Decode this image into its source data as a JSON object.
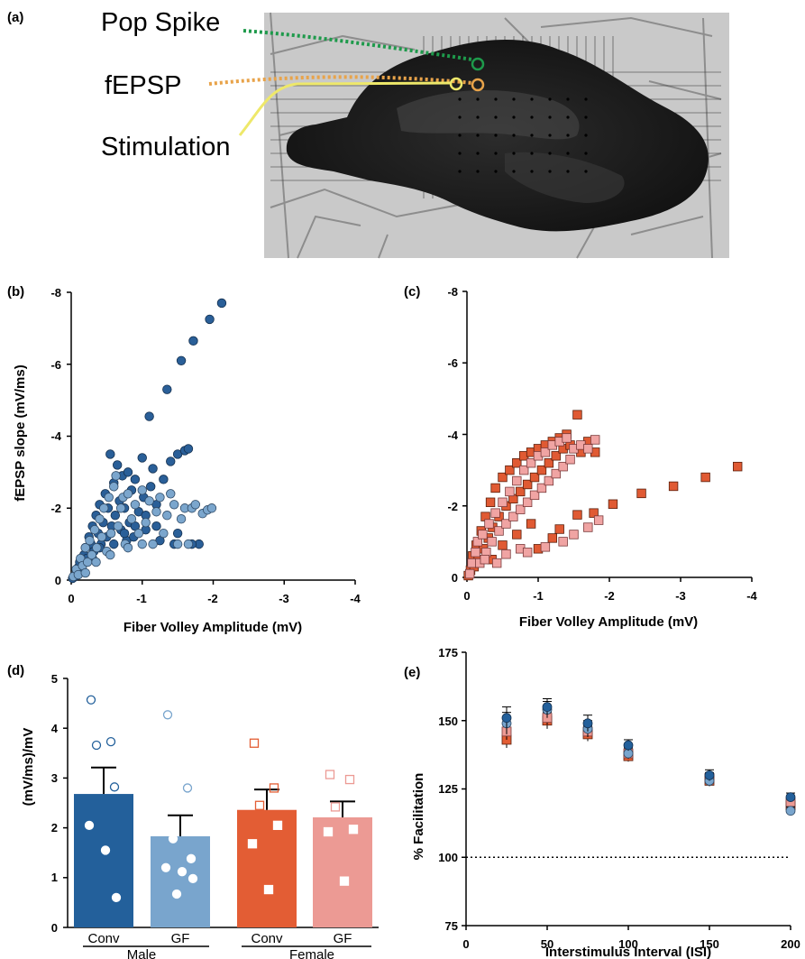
{
  "panel_a": {
    "label": "(a)",
    "annotations": [
      {
        "name": "pop-spike",
        "text": "Pop Spike",
        "color": "#1e9a4b"
      },
      {
        "name": "fepsp",
        "text": "fEPSP",
        "color": "#e8a34a"
      },
      {
        "name": "stimulation",
        "text": "Stimulation",
        "color": "#eee86a"
      }
    ]
  },
  "chart_data": [
    {
      "panel": "(b)",
      "type": "scatter",
      "xlabel": "Fiber Volley Amplitude (mV)",
      "ylabel": "fEPSP slope (mV/ms)",
      "xlim": [
        0,
        -4
      ],
      "ylim": [
        0,
        -8
      ],
      "x_ticks": [
        "0",
        "-1",
        "-2",
        "-3",
        "-4"
      ],
      "y_ticks": [
        "0",
        "-2",
        "-4",
        "-6",
        "-8"
      ],
      "series": [
        {
          "color": "#2a5f98",
          "edge": "#14304f",
          "marker": "circle",
          "points": [
            [
              -0.02,
              -0.05
            ],
            [
              -0.05,
              -0.1
            ],
            [
              -0.08,
              -0.2
            ],
            [
              -0.1,
              -0.35
            ],
            [
              -0.12,
              -0.5
            ],
            [
              -0.15,
              -0.3
            ],
            [
              -0.18,
              -0.7
            ],
            [
              -0.2,
              -0.9
            ],
            [
              -0.22,
              -0.6
            ],
            [
              -0.25,
              -1.2
            ],
            [
              -0.28,
              -1.0
            ],
            [
              -0.3,
              -1.5
            ],
            [
              -0.32,
              -0.8
            ],
            [
              -0.35,
              -1.8
            ],
            [
              -0.38,
              -1.3
            ],
            [
              -0.4,
              -2.1
            ],
            [
              -0.42,
              -1.0
            ],
            [
              -0.45,
              -1.6
            ],
            [
              -0.48,
              -2.4
            ],
            [
              -0.5,
              -1.2
            ],
            [
              -0.52,
              -2.0
            ],
            [
              -0.55,
              -3.5
            ],
            [
              -0.57,
              -1.5
            ],
            [
              -0.6,
              -2.7
            ],
            [
              -0.62,
              -1.8
            ],
            [
              -0.65,
              -3.2
            ],
            [
              -0.68,
              -2.2
            ],
            [
              -0.7,
              -1.4
            ],
            [
              -0.72,
              -2.9
            ],
            [
              -0.75,
              -2.0
            ],
            [
              -0.78,
              -1.1
            ],
            [
              -0.8,
              -3.0
            ],
            [
              -0.82,
              -1.6
            ],
            [
              -0.85,
              -2.5
            ],
            [
              -0.88,
              -1.2
            ],
            [
              -0.9,
              -2.8
            ],
            [
              -0.95,
              -1.9
            ],
            [
              -1.0,
              -3.4
            ],
            [
              -1.02,
              -2.3
            ],
            [
              -1.05,
              -1.4
            ],
            [
              -1.1,
              -4.55
            ],
            [
              -1.12,
              -2.6
            ],
            [
              -1.15,
              -3.1
            ],
            [
              -1.2,
              -2.1
            ],
            [
              -1.25,
              -1.1
            ],
            [
              -1.3,
              -2.8
            ],
            [
              -1.35,
              -5.3
            ],
            [
              -1.4,
              -3.3
            ],
            [
              -1.45,
              -1.0
            ],
            [
              -1.5,
              -3.5
            ],
            [
              -1.55,
              -6.1
            ],
            [
              -1.6,
              -3.6
            ],
            [
              -1.65,
              -3.65
            ],
            [
              -1.72,
              -6.65
            ],
            [
              -1.8,
              -1.0
            ],
            [
              -1.95,
              -7.25
            ],
            [
              -2.12,
              -7.7
            ],
            [
              -0.3,
              -0.6
            ],
            [
              -0.4,
              -0.9
            ],
            [
              -0.6,
              -1.0
            ],
            [
              -0.75,
              -1.3
            ],
            [
              -0.9,
              -1.5
            ],
            [
              -1.05,
              -1.8
            ],
            [
              -1.2,
              -1.5
            ],
            [
              -1.5,
              -1.3
            ],
            [
              -1.7,
              -1.0
            ]
          ]
        },
        {
          "color": "#7ba6cd",
          "edge": "#2f4a66",
          "marker": "circle",
          "points": [
            [
              -0.03,
              -0.1
            ],
            [
              -0.07,
              -0.3
            ],
            [
              -0.1,
              -0.15
            ],
            [
              -0.13,
              -0.6
            ],
            [
              -0.16,
              -0.4
            ],
            [
              -0.2,
              -0.9
            ],
            [
              -0.23,
              -0.5
            ],
            [
              -0.26,
              -1.1
            ],
            [
              -0.29,
              -0.7
            ],
            [
              -0.33,
              -1.4
            ],
            [
              -0.36,
              -0.9
            ],
            [
              -0.4,
              -1.7
            ],
            [
              -0.43,
              -1.2
            ],
            [
              -0.46,
              -2.0
            ],
            [
              -0.5,
              -0.8
            ],
            [
              -0.53,
              -2.3
            ],
            [
              -0.56,
              -1.3
            ],
            [
              -0.6,
              -2.6
            ],
            [
              -0.63,
              -2.9
            ],
            [
              -0.66,
              -1.5
            ],
            [
              -0.7,
              -2.0
            ],
            [
              -0.73,
              -2.3
            ],
            [
              -0.76,
              -1.0
            ],
            [
              -0.8,
              -2.4
            ],
            [
              -0.85,
              -1.7
            ],
            [
              -0.9,
              -2.1
            ],
            [
              -0.95,
              -1.3
            ],
            [
              -1.0,
              -2.5
            ],
            [
              -1.05,
              -1.6
            ],
            [
              -1.1,
              -2.2
            ],
            [
              -1.15,
              -1.0
            ],
            [
              -1.2,
              -1.9
            ],
            [
              -1.25,
              -2.3
            ],
            [
              -1.3,
              -1.3
            ],
            [
              -1.35,
              -1.8
            ],
            [
              -1.4,
              -2.4
            ],
            [
              -1.45,
              -2.1
            ],
            [
              -1.5,
              -1.0
            ],
            [
              -1.55,
              -1.7
            ],
            [
              -1.6,
              -2.0
            ],
            [
              -1.65,
              -1.0
            ],
            [
              -1.7,
              -2.0
            ],
            [
              -1.75,
              -2.1
            ],
            [
              -1.85,
              -1.85
            ],
            [
              -1.92,
              -1.95
            ],
            [
              -1.98,
              -2.0
            ],
            [
              -0.2,
              -0.2
            ],
            [
              -0.35,
              -0.5
            ],
            [
              -0.55,
              -0.7
            ],
            [
              -0.8,
              -0.9
            ],
            [
              -1.0,
              -1.0
            ]
          ]
        }
      ]
    },
    {
      "panel": "(c)",
      "type": "scatter",
      "xlabel": "Fiber Volley Amplitude (mV)",
      "ylabel": "",
      "xlim": [
        0,
        -4
      ],
      "ylim": [
        0,
        -8
      ],
      "x_ticks": [
        "0",
        "-1",
        "-2",
        "-3",
        "-4"
      ],
      "y_ticks": [
        "0",
        "-2",
        "-4",
        "-6",
        "-8"
      ],
      "series": [
        {
          "color": "#e05a33",
          "edge": "#5a1f0c",
          "marker": "square",
          "points": [
            [
              -0.02,
              -0.05
            ],
            [
              -0.05,
              -0.2
            ],
            [
              -0.08,
              -0.6
            ],
            [
              -0.1,
              -0.3
            ],
            [
              -0.13,
              -0.9
            ],
            [
              -0.16,
              -0.5
            ],
            [
              -0.2,
              -1.3
            ],
            [
              -0.23,
              -0.8
            ],
            [
              -0.26,
              -1.7
            ],
            [
              -0.3,
              -1.1
            ],
            [
              -0.33,
              -2.1
            ],
            [
              -0.36,
              -1.4
            ],
            [
              -0.4,
              -2.5
            ],
            [
              -0.45,
              -1.7
            ],
            [
              -0.5,
              -2.8
            ],
            [
              -0.55,
              -2.0
            ],
            [
              -0.6,
              -3.0
            ],
            [
              -0.65,
              -2.2
            ],
            [
              -0.7,
              -3.2
            ],
            [
              -0.75,
              -2.4
            ],
            [
              -0.8,
              -3.4
            ],
            [
              -0.85,
              -2.6
            ],
            [
              -0.9,
              -3.5
            ],
            [
              -0.95,
              -2.8
            ],
            [
              -1.0,
              -3.6
            ],
            [
              -1.05,
              -3.0
            ],
            [
              -1.1,
              -3.7
            ],
            [
              -1.15,
              -3.2
            ],
            [
              -1.2,
              -3.8
            ],
            [
              -1.25,
              -3.4
            ],
            [
              -1.3,
              -3.9
            ],
            [
              -1.35,
              -3.6
            ],
            [
              -1.4,
              -4.0
            ],
            [
              -1.45,
              -3.7
            ],
            [
              -1.55,
              -4.55
            ],
            [
              -1.6,
              -3.5
            ],
            [
              -1.7,
              -3.8
            ],
            [
              -1.8,
              -3.5
            ],
            [
              -0.35,
              -0.5
            ],
            [
              -0.5,
              -0.9
            ],
            [
              -0.7,
              -1.2
            ],
            [
              -0.9,
              -1.5
            ],
            [
              -1.0,
              -0.8
            ],
            [
              -1.2,
              -1.1
            ],
            [
              -1.3,
              -1.35
            ],
            [
              -1.55,
              -1.75
            ],
            [
              -1.78,
              -1.8
            ],
            [
              -2.05,
              -2.05
            ],
            [
              -2.45,
              -2.35
            ],
            [
              -2.9,
              -2.55
            ],
            [
              -3.35,
              -2.8
            ],
            [
              -3.8,
              -3.1
            ]
          ]
        },
        {
          "color": "#f0a4a3",
          "edge": "#7a3a3a",
          "marker": "square",
          "points": [
            [
              -0.04,
              -0.1
            ],
            [
              -0.07,
              -0.4
            ],
            [
              -0.12,
              -0.7
            ],
            [
              -0.15,
              -1.0
            ],
            [
              -0.18,
              -0.4
            ],
            [
              -0.22,
              -1.2
            ],
            [
              -0.27,
              -0.7
            ],
            [
              -0.31,
              -1.5
            ],
            [
              -0.35,
              -1.0
            ],
            [
              -0.4,
              -1.8
            ],
            [
              -0.45,
              -1.3
            ],
            [
              -0.5,
              -2.1
            ],
            [
              -0.55,
              -1.5
            ],
            [
              -0.6,
              -2.4
            ],
            [
              -0.65,
              -1.7
            ],
            [
              -0.7,
              -2.7
            ],
            [
              -0.75,
              -1.9
            ],
            [
              -0.8,
              -3.0
            ],
            [
              -0.85,
              -2.1
            ],
            [
              -0.9,
              -3.2
            ],
            [
              -0.95,
              -2.3
            ],
            [
              -1.0,
              -3.4
            ],
            [
              -1.05,
              -2.5
            ],
            [
              -1.1,
              -3.5
            ],
            [
              -1.15,
              -2.7
            ],
            [
              -1.2,
              -3.7
            ],
            [
              -1.25,
              -2.9
            ],
            [
              -1.3,
              -3.8
            ],
            [
              -1.35,
              -3.1
            ],
            [
              -1.4,
              -3.9
            ],
            [
              -1.45,
              -3.3
            ],
            [
              -1.5,
              -3.6
            ],
            [
              -1.6,
              -3.7
            ],
            [
              -1.7,
              -3.6
            ],
            [
              -1.8,
              -3.85
            ],
            [
              -0.25,
              -0.5
            ],
            [
              -0.42,
              -0.4
            ],
            [
              -0.55,
              -0.65
            ],
            [
              -0.75,
              -0.8
            ],
            [
              -0.85,
              -0.7
            ],
            [
              -1.1,
              -0.85
            ],
            [
              -1.35,
              -1.0
            ],
            [
              -1.5,
              -1.2
            ],
            [
              -1.7,
              -1.4
            ],
            [
              -1.85,
              -1.6
            ]
          ]
        }
      ]
    },
    {
      "panel": "(d)",
      "type": "bar",
      "ylabel": "(mV/ms)/mV",
      "ylim": [
        0,
        5
      ],
      "y_ticks": [
        "0",
        "1",
        "2",
        "3",
        "4",
        "5"
      ],
      "categories": [
        "Conv",
        "GF",
        "Conv",
        "GF"
      ],
      "groups": [
        "Male",
        "Female"
      ],
      "means": [
        2.68,
        1.83,
        2.36,
        2.21
      ],
      "sem": [
        0.53,
        0.42,
        0.41,
        0.32
      ],
      "bar_colors": [
        "#23609b",
        "#79a5cd",
        "#e35d34",
        "#ec9a94"
      ],
      "points": [
        [
          4.57,
          3.73,
          3.66,
          2.82,
          2.05,
          1.55,
          0.6
        ],
        [
          4.27,
          2.8,
          1.78,
          1.38,
          1.2,
          1.12,
          0.98,
          0.67
        ],
        [
          3.7,
          2.8,
          2.45,
          2.05,
          1.68,
          0.76
        ],
        [
          3.07,
          2.97,
          2.42,
          1.97,
          1.92,
          0.93
        ]
      ],
      "point_styles": [
        "circle-hollow",
        "circle-hollow",
        "square-hollow",
        "square-hollow"
      ]
    },
    {
      "panel": "(e)",
      "type": "scatter",
      "xlabel": "Interstimulus Interval (ISI)",
      "ylabel": "% Facilitation",
      "xlim": [
        0,
        200
      ],
      "ylim": [
        75,
        175
      ],
      "x_ticks": [
        "0",
        "50",
        "100",
        "150",
        "200"
      ],
      "y_ticks": [
        "75",
        "100",
        "125",
        "150",
        "175"
      ],
      "reference_line": 100,
      "x": [
        25,
        50,
        75,
        100,
        150,
        200
      ],
      "series": [
        {
          "color": "#e35d34",
          "edge": "#5a1f0c",
          "marker": "square",
          "values": [
            143,
            150,
            145,
            137,
            128,
            119
          ],
          "err": [
            3,
            3,
            2.5,
            2,
            2,
            2
          ]
        },
        {
          "color": "#ec9a94",
          "edge": "#7a3a3a",
          "marker": "square",
          "values": [
            146,
            151,
            146,
            138,
            129,
            120
          ],
          "err": [
            3,
            2.5,
            2,
            2,
            2,
            2
          ]
        },
        {
          "color": "#79a5cd",
          "edge": "#2f4a66",
          "marker": "circle",
          "values": [
            149,
            154,
            147,
            138,
            128,
            117
          ],
          "err": [
            4,
            3,
            3,
            2,
            2,
            1.5
          ]
        },
        {
          "color": "#23609b",
          "edge": "#14304f",
          "marker": "circle",
          "values": [
            151,
            155,
            149,
            141,
            130,
            122
          ],
          "err": [
            4,
            3,
            3,
            2,
            2,
            1.5
          ]
        }
      ]
    }
  ]
}
